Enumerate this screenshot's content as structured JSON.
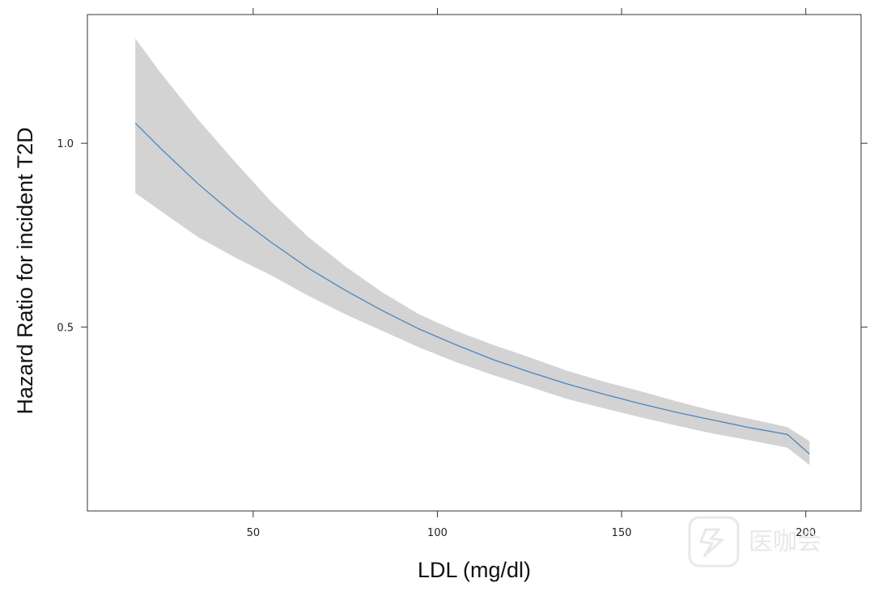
{
  "chart_data": {
    "type": "line",
    "title": "",
    "xlabel": "LDL (mg/dl)",
    "ylabel": "Hazard Ratio for incident T2D",
    "xlim": [
      5,
      215
    ],
    "ylim": [
      0.0,
      1.35
    ],
    "x_ticks": [
      50,
      100,
      150,
      200
    ],
    "x_tick_labels": [
      "50",
      "100",
      "150",
      "200"
    ],
    "y_ticks": [
      0.5,
      1.0
    ],
    "y_tick_labels": [
      "0.5",
      "1.0"
    ],
    "grid": false,
    "legend": "none",
    "colors": {
      "line": "#4a86c0",
      "band": "#d3d3d3",
      "axis": "#333333"
    },
    "series": [
      {
        "x": [
          18,
          25,
          35,
          45,
          55,
          65,
          75,
          85,
          95,
          105,
          115,
          125,
          135,
          145,
          155,
          165,
          175,
          185,
          195,
          201
        ],
        "y": [
          1.055,
          0.985,
          0.89,
          0.805,
          0.73,
          0.66,
          0.6,
          0.545,
          0.495,
          0.452,
          0.412,
          0.378,
          0.346,
          0.318,
          0.292,
          0.268,
          0.247,
          0.226,
          0.208,
          0.155
        ],
        "lower": [
          0.865,
          0.815,
          0.745,
          0.69,
          0.64,
          0.585,
          0.535,
          0.49,
          0.445,
          0.405,
          0.37,
          0.338,
          0.305,
          0.28,
          0.255,
          0.232,
          0.21,
          0.192,
          0.172,
          0.125
        ],
        "upper": [
          1.285,
          1.19,
          1.065,
          0.95,
          0.84,
          0.745,
          0.665,
          0.595,
          0.535,
          0.49,
          0.452,
          0.418,
          0.382,
          0.352,
          0.326,
          0.298,
          0.272,
          0.25,
          0.228,
          0.19
        ]
      }
    ]
  },
  "watermark": {
    "icon": "medical-logo-icon",
    "text": "医咖会"
  }
}
